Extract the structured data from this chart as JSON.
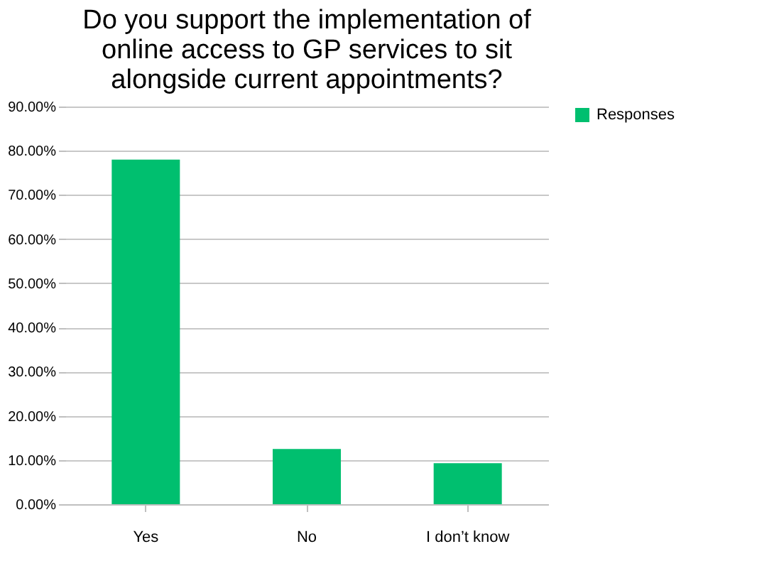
{
  "chart_data": {
    "type": "bar",
    "title": [
      "Do you support the implementation of",
      "online access to GP services to sit",
      "alongside current appointments?"
    ],
    "categories": [
      "Yes",
      "No",
      "I don’t know"
    ],
    "series": [
      {
        "name": "Responses",
        "color": "#00bf6f",
        "values": [
          78.0,
          12.5,
          9.3
        ]
      }
    ],
    "ylim": [
      0,
      90
    ],
    "yticks": [
      {
        "value": 0,
        "label": "0.00%"
      },
      {
        "value": 10,
        "label": "10.00%"
      },
      {
        "value": 20,
        "label": "20.00%"
      },
      {
        "value": 30,
        "label": "30.00%"
      },
      {
        "value": 40,
        "label": "40.00%"
      },
      {
        "value": 50,
        "label": "50.00%"
      },
      {
        "value": 60,
        "label": "60.00%"
      },
      {
        "value": 70,
        "label": "70.00%"
      },
      {
        "value": 80,
        "label": "80.00%"
      },
      {
        "value": 90,
        "label": "90.00%"
      }
    ],
    "grid": "y",
    "legend": "right"
  }
}
